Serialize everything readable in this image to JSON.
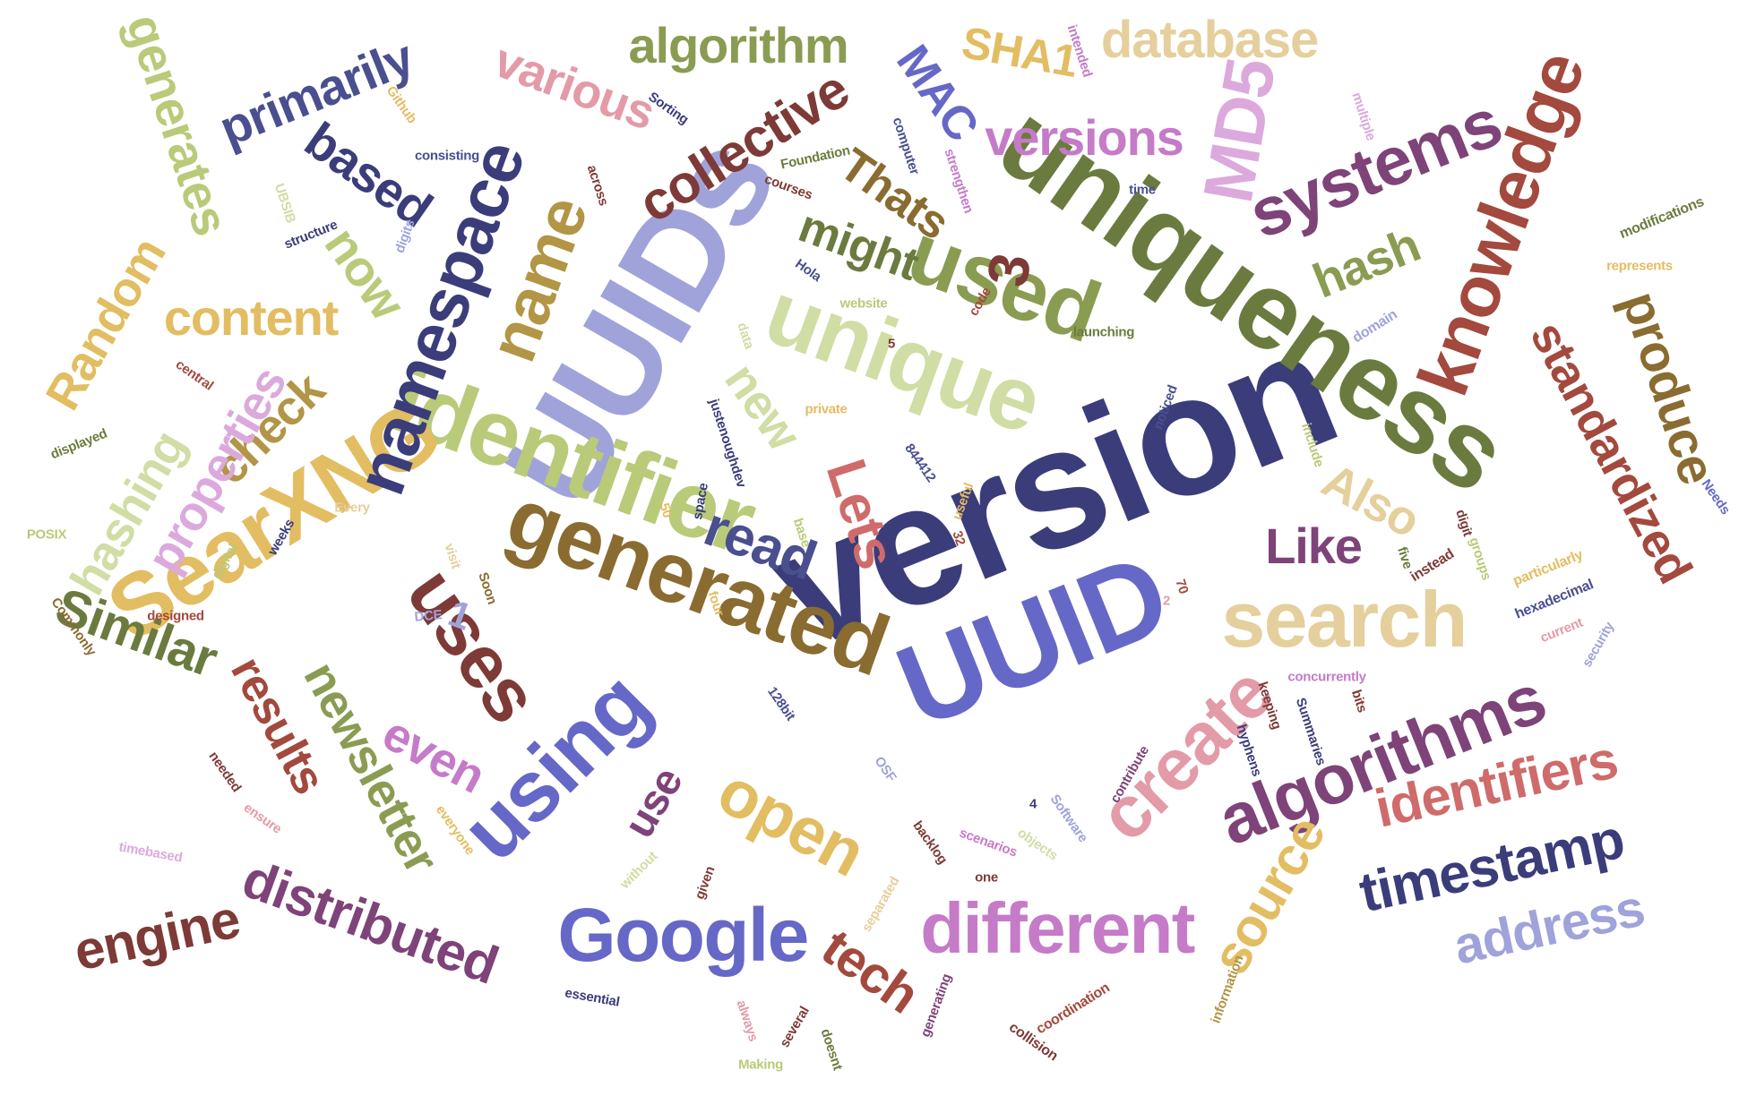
{
  "words": [
    "version",
    "UUIDs",
    "uniqueness",
    "UUID",
    "identifier",
    "generated",
    "unique",
    "SearXNG",
    "used",
    "search",
    "namespace",
    "algorithms",
    "different",
    "using",
    "Google",
    "knowledge",
    "systems",
    "name",
    "uses",
    "create",
    "identifiers",
    "standardized",
    "timestamp",
    "address",
    "produce",
    "MD5",
    "collective",
    "algorithm",
    "database",
    "primarily",
    "generates",
    "Similar",
    "engine",
    "distributed",
    "newsletter",
    "results",
    "even",
    "open",
    "source",
    "tech",
    "content",
    "check",
    "properties",
    "hashing",
    "Random",
    "based",
    "now",
    "various",
    "MAC",
    "SHA1",
    "versions",
    "Thats",
    "might",
    "hash",
    "read",
    "Lets",
    "new",
    "Also",
    "Like",
    "3",
    "1",
    "use",
    "Hola",
    "website",
    "code",
    "launching",
    "domain",
    "data",
    "private",
    "justenoughdev",
    "space",
    "useful",
    "noticed",
    "include",
    "security",
    "current",
    "hexadecimal",
    "particularly",
    "instead",
    "groups",
    "digit",
    "five",
    "concurrently",
    "keeping",
    "hyphens",
    "Summaries",
    "bits",
    "contribute",
    "Software",
    "objects",
    "OSF",
    "scenarios",
    "one",
    "backlog",
    "generating",
    "coordination",
    "collision",
    "information",
    "doesnt",
    "several",
    "always",
    "given",
    "without",
    "Making",
    "separated",
    "essential",
    "everyone",
    "timebased",
    "ensure",
    "needed",
    "designed",
    "Commonly",
    "DCE",
    "POSIX",
    "displayed",
    "central",
    "digital",
    "weeks",
    "Every",
    "visit",
    "Soon",
    "four",
    "base",
    "128bit",
    "844412",
    "32",
    "50",
    "70",
    "4",
    "5",
    "2",
    "UBSIB",
    "structure",
    "digits",
    "consisting",
    "Github",
    "Sorting",
    "across",
    "courses",
    "Foundation",
    "computer",
    "strengthen",
    "time",
    "multiple",
    "intended",
    "modifications",
    "represents",
    "Needs"
  ],
  "colors": {
    "navy": "#3b3d7a",
    "periwinkle": "#9fa3da",
    "olive": "#6b7b3f",
    "moss": "#8a9c52",
    "lightolive": "#b9ca79",
    "palegreen": "#d0dda4",
    "gold": "#e2bd62",
    "tan": "#e5cf9c",
    "brown": "#8a6c31",
    "maroon": "#7d3a36",
    "rust": "#a3493d",
    "rose": "#cf6b6b",
    "pink": "#e39ba7",
    "lavender": "#c57bc8",
    "orchid": "#dca9dd",
    "plum": "#7e4378",
    "blue": "#6668c7",
    "slate": "#4a4f8f"
  }
}
